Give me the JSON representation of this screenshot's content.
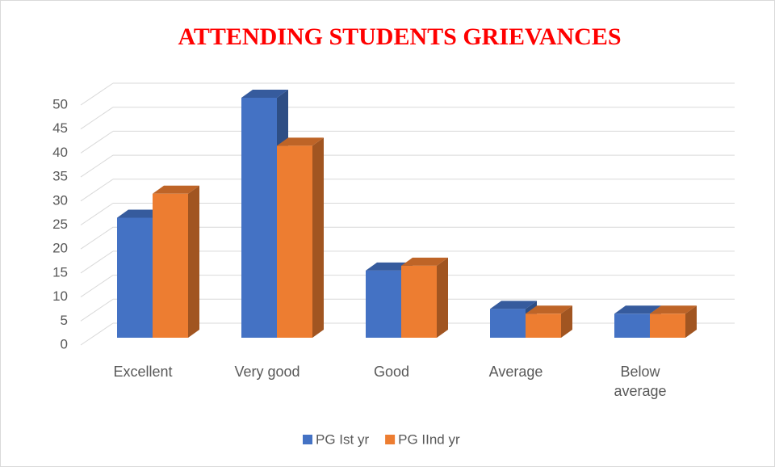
{
  "chart_data": {
    "type": "bar3d",
    "title": "ATTENDING STUDENTS GRIEVANCES",
    "categories": [
      "Excellent",
      "Very good",
      "Good",
      "Average",
      "Below average"
    ],
    "series": [
      {
        "name": "PG Ist yr",
        "color": "#4472c4",
        "values": [
          25,
          50,
          14,
          6,
          5
        ]
      },
      {
        "name": "PG IInd yr",
        "color": "#ed7d31",
        "values": [
          30,
          40,
          15,
          5,
          5
        ]
      }
    ],
    "ylim": [
      0,
      50
    ],
    "yticks": [
      0,
      5,
      10,
      15,
      20,
      25,
      30,
      35,
      40,
      45,
      50
    ],
    "grid": true,
    "legend": "bottom"
  }
}
